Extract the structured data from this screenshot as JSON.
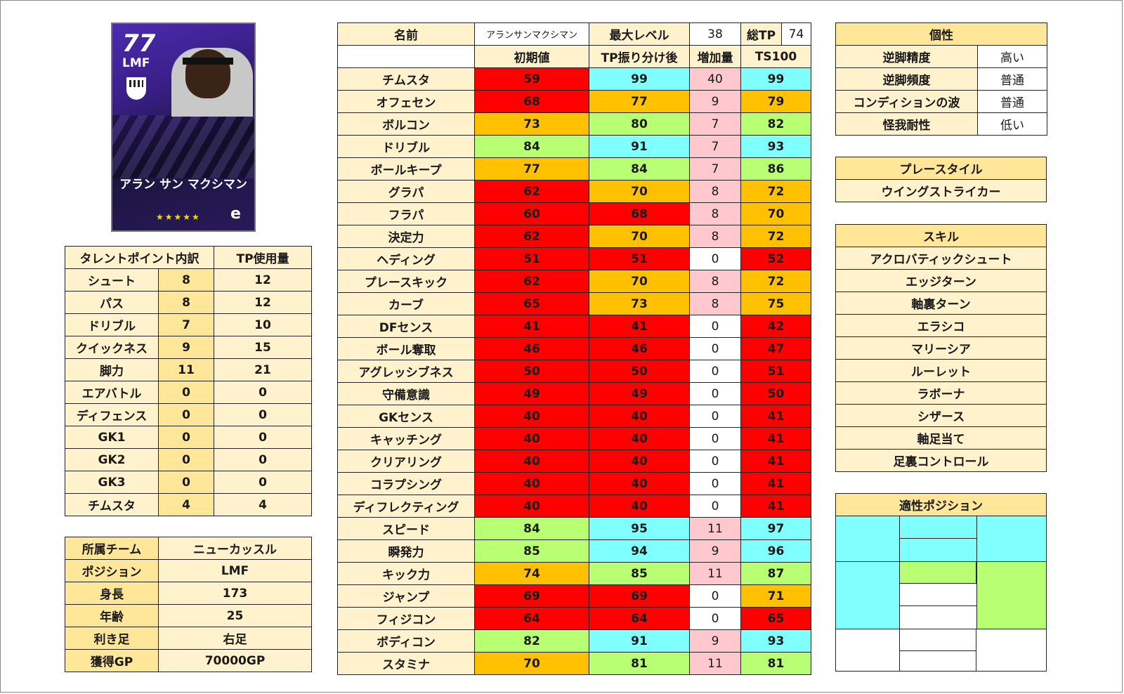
{
  "card": {
    "rating": "77",
    "position": "LMF",
    "name": "アラン サン マクシマン",
    "stars": "★★★★★",
    "logo": "e"
  },
  "talent": {
    "header_left": "タレントポイント内訳",
    "header_right": "TP使用量",
    "rows": [
      {
        "label": "シュート",
        "pts": "8",
        "used": "12"
      },
      {
        "label": "パス",
        "pts": "8",
        "used": "12"
      },
      {
        "label": "ドリブル",
        "pts": "7",
        "used": "10"
      },
      {
        "label": "クイックネス",
        "pts": "9",
        "used": "15"
      },
      {
        "label": "脚力",
        "pts": "11",
        "used": "21"
      },
      {
        "label": "エアバトル",
        "pts": "0",
        "used": "0"
      },
      {
        "label": "ディフェンス",
        "pts": "0",
        "used": "0"
      },
      {
        "label": "GK1",
        "pts": "0",
        "used": "0"
      },
      {
        "label": "GK2",
        "pts": "0",
        "used": "0"
      },
      {
        "label": "GK3",
        "pts": "0",
        "used": "0"
      },
      {
        "label": "チムスタ",
        "pts": "4",
        "used": "4"
      }
    ]
  },
  "profile": {
    "rows": [
      {
        "label": "所属チーム",
        "value": "ニューカッスル"
      },
      {
        "label": "ポジション",
        "value": "LMF"
      },
      {
        "label": "身長",
        "value": "173"
      },
      {
        "label": "年齢",
        "value": "25"
      },
      {
        "label": "利き足",
        "value": "右足"
      },
      {
        "label": "獲得GP",
        "value": "70000GP"
      }
    ]
  },
  "stats": {
    "name_label": "名前",
    "name_value": "アランサンマクシマン",
    "maxlevel_label": "最大レベル",
    "maxlevel_value": "38",
    "totaltp_label": "総TP",
    "totaltp_value": "74",
    "col_initial": "初期値",
    "col_after": "TP振り分け後",
    "col_increase": "増加量",
    "col_ts": "TS100",
    "rows": [
      {
        "label": "チムスタ",
        "init": "59",
        "after": "99",
        "inc": "40",
        "ts": "99"
      },
      {
        "label": "オフェセン",
        "init": "68",
        "after": "77",
        "inc": "9",
        "ts": "79"
      },
      {
        "label": "ボルコン",
        "init": "73",
        "after": "80",
        "inc": "7",
        "ts": "82"
      },
      {
        "label": "ドリブル",
        "init": "84",
        "after": "91",
        "inc": "7",
        "ts": "93"
      },
      {
        "label": "ボールキープ",
        "init": "77",
        "after": "84",
        "inc": "7",
        "ts": "86"
      },
      {
        "label": "グラパ",
        "init": "62",
        "after": "70",
        "inc": "8",
        "ts": "72"
      },
      {
        "label": "フラパ",
        "init": "60",
        "after": "68",
        "inc": "8",
        "ts": "70"
      },
      {
        "label": "決定力",
        "init": "62",
        "after": "70",
        "inc": "8",
        "ts": "72"
      },
      {
        "label": "ヘディング",
        "init": "51",
        "after": "51",
        "inc": "0",
        "ts": "52"
      },
      {
        "label": "プレースキック",
        "init": "62",
        "after": "70",
        "inc": "8",
        "ts": "72"
      },
      {
        "label": "カーブ",
        "init": "65",
        "after": "73",
        "inc": "8",
        "ts": "75"
      },
      {
        "label": "DFセンス",
        "init": "41",
        "after": "41",
        "inc": "0",
        "ts": "42"
      },
      {
        "label": "ボール奪取",
        "init": "46",
        "after": "46",
        "inc": "0",
        "ts": "47"
      },
      {
        "label": "アグレッシブネス",
        "init": "50",
        "after": "50",
        "inc": "0",
        "ts": "51"
      },
      {
        "label": "守備意識",
        "init": "49",
        "after": "49",
        "inc": "0",
        "ts": "50"
      },
      {
        "label": "GKセンス",
        "init": "40",
        "after": "40",
        "inc": "0",
        "ts": "41"
      },
      {
        "label": "キャッチング",
        "init": "40",
        "after": "40",
        "inc": "0",
        "ts": "41"
      },
      {
        "label": "クリアリング",
        "init": "40",
        "after": "40",
        "inc": "0",
        "ts": "41"
      },
      {
        "label": "コラプシング",
        "init": "40",
        "after": "40",
        "inc": "0",
        "ts": "41"
      },
      {
        "label": "ディフレクティング",
        "init": "40",
        "after": "40",
        "inc": "0",
        "ts": "41"
      },
      {
        "label": "スピード",
        "init": "84",
        "after": "95",
        "inc": "11",
        "ts": "97"
      },
      {
        "label": "瞬発力",
        "init": "85",
        "after": "94",
        "inc": "9",
        "ts": "96"
      },
      {
        "label": "キック力",
        "init": "74",
        "after": "85",
        "inc": "11",
        "ts": "87"
      },
      {
        "label": "ジャンプ",
        "init": "69",
        "after": "69",
        "inc": "0",
        "ts": "71"
      },
      {
        "label": "フィジコン",
        "init": "64",
        "after": "64",
        "inc": "0",
        "ts": "65"
      },
      {
        "label": "ボディコン",
        "init": "82",
        "after": "91",
        "inc": "9",
        "ts": "93"
      },
      {
        "label": "スタミナ",
        "init": "70",
        "after": "81",
        "inc": "11",
        "ts": "81"
      }
    ]
  },
  "traits": {
    "header": "個性",
    "rows": [
      {
        "label": "逆脚精度",
        "value": "高い"
      },
      {
        "label": "逆脚頻度",
        "value": "普通"
      },
      {
        "label": "コンディションの波",
        "value": "普通"
      },
      {
        "label": "怪我耐性",
        "value": "低い"
      }
    ]
  },
  "playstyle": {
    "header": "プレースタイル",
    "value": "ウイングストライカー"
  },
  "skills": {
    "header": "スキル",
    "items": [
      "アクロバティックシュート",
      "エッジターン",
      "軸裏ターン",
      "エラシコ",
      "マリーシア",
      "ルーレット",
      "ラボーナ",
      "シザース",
      "軸足当て",
      "足裏コントロール"
    ]
  },
  "positions": {
    "header": "適性ポジション",
    "colors": {
      "cyan": "#80ffff",
      "green": "#b8ff73",
      "white": "#ffffff"
    }
  }
}
